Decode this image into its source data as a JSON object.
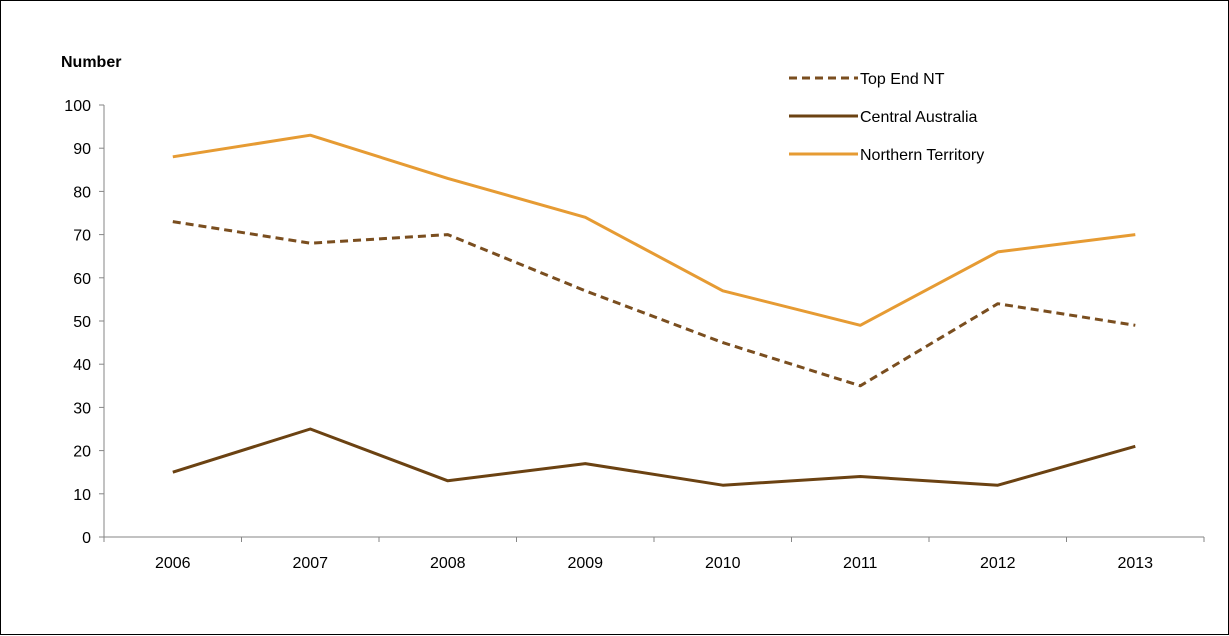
{
  "chart_data": {
    "type": "line",
    "title": "",
    "xlabel": "",
    "ylabel": "Number",
    "ylim": [
      0,
      100
    ],
    "yticks": [
      0,
      10,
      20,
      30,
      40,
      50,
      60,
      70,
      80,
      90,
      100
    ],
    "categories": [
      "2006",
      "2007",
      "2008",
      "2009",
      "2010",
      "2011",
      "2012",
      "2013"
    ],
    "grid": false,
    "legend_position": "top-right",
    "series": [
      {
        "name": "Top End NT",
        "values": [
          73,
          68,
          70,
          57,
          45,
          35,
          54,
          49
        ],
        "color": "#7a4e1f",
        "style": "dashed"
      },
      {
        "name": "Central Australia",
        "values": [
          15,
          25,
          13,
          17,
          12,
          14,
          12,
          21
        ],
        "color": "#6b4212",
        "style": "solid"
      },
      {
        "name": "Northern Territory",
        "values": [
          88,
          93,
          83,
          74,
          57,
          49,
          66,
          70
        ],
        "color": "#e69b33",
        "style": "solid"
      }
    ]
  }
}
